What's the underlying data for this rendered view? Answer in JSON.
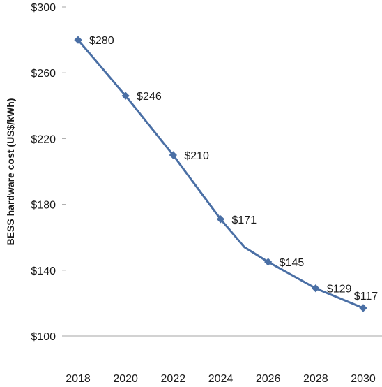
{
  "chart_data": {
    "type": "line",
    "title": "",
    "xlabel": "",
    "ylabel": "BESS hardware cost (US$/kWh)",
    "x_ticks": [
      "2018",
      "2020",
      "2022",
      "2024",
      "2026",
      "2028",
      "2030"
    ],
    "y_ticks": [
      "$100",
      "$140",
      "$180",
      "$220",
      "$260",
      "$300"
    ],
    "xlim": [
      2018,
      2030
    ],
    "ylim": [
      100,
      300
    ],
    "grid": false,
    "line_color": "#4a6fa5",
    "series": [
      {
        "line_points": [
          {
            "x": 2018,
            "y": 280
          },
          {
            "x": 2020,
            "y": 246
          },
          {
            "x": 2022,
            "y": 210
          },
          {
            "x": 2024,
            "y": 171
          },
          {
            "x": 2025,
            "y": 154
          },
          {
            "x": 2026,
            "y": 145
          },
          {
            "x": 2028,
            "y": 129
          },
          {
            "x": 2030,
            "y": 117
          }
        ],
        "markers": [
          {
            "x": 2018,
            "y": 280,
            "label": "$280"
          },
          {
            "x": 2020,
            "y": 246,
            "label": "$246"
          },
          {
            "x": 2022,
            "y": 210,
            "label": "$210"
          },
          {
            "x": 2024,
            "y": 171,
            "label": "$171"
          },
          {
            "x": 2026,
            "y": 145,
            "label": "$145"
          },
          {
            "x": 2028,
            "y": 129,
            "label": "$129"
          },
          {
            "x": 2030,
            "y": 117,
            "label": "$117"
          }
        ]
      }
    ]
  }
}
